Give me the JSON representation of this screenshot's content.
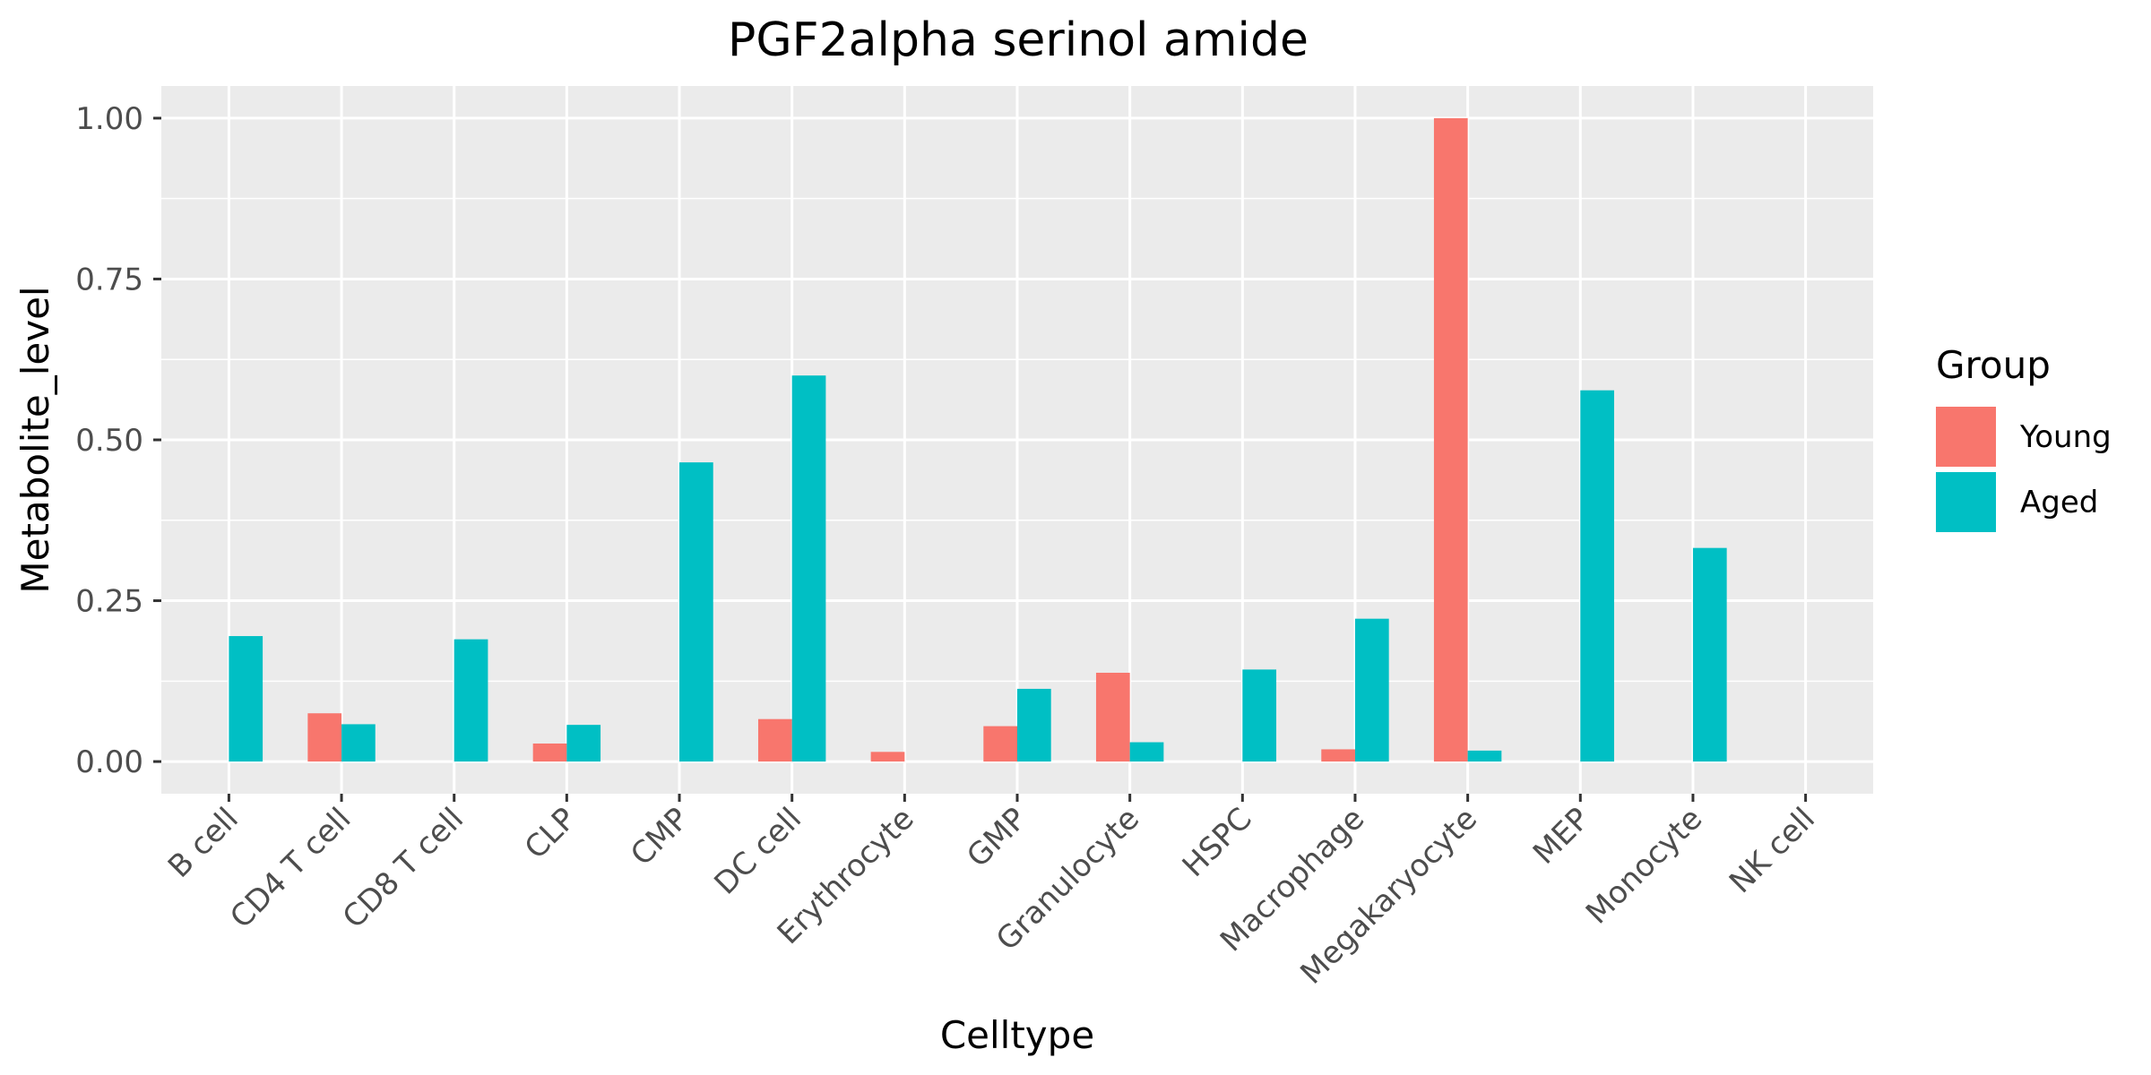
{
  "chart_data": {
    "type": "bar",
    "title": "PGF2alpha serinol amide",
    "xlabel": "Celltype",
    "ylabel": "Metabolite_level",
    "ylim": [
      -0.05,
      1.05
    ],
    "yticks": [
      0.0,
      0.25,
      0.5,
      0.75,
      1.0
    ],
    "ytick_labels": [
      "0.00",
      "0.25",
      "0.50",
      "0.75",
      "1.00"
    ],
    "grid": true,
    "legend": {
      "title": "Group",
      "position": "right"
    },
    "categories": [
      "B cell",
      "CD4 T cell",
      "CD8 T cell",
      "CLP",
      "CMP",
      "DC cell",
      "Erythrocyte",
      "GMP",
      "Granulocyte",
      "HSPC",
      "Macrophage",
      "Megakaryocyte",
      "MEP",
      "Monocyte",
      "NK cell"
    ],
    "series": [
      {
        "name": "Young",
        "color": "#F8766D",
        "values": [
          0,
          0.075,
          0,
          0.028,
          0,
          0.066,
          0.015,
          0.055,
          0.138,
          0,
          0.019,
          1.0,
          0,
          0,
          0
        ]
      },
      {
        "name": "Aged",
        "color": "#00BFC4",
        "values": [
          0.195,
          0.058,
          0.19,
          0.057,
          0.465,
          0.6,
          0,
          0.113,
          0.03,
          0.143,
          0.222,
          0.017,
          0.577,
          0.332,
          0
        ]
      }
    ]
  }
}
